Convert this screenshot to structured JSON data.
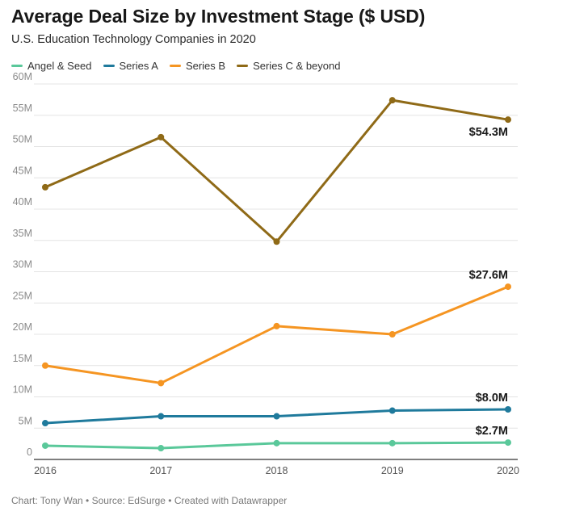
{
  "chart_data": {
    "type": "line",
    "title": "Average Deal Size by Investment Stage ($ USD)",
    "subtitle": "U.S. Education Technology Companies in 2020",
    "x": [
      "2016",
      "2017",
      "2018",
      "2019",
      "2020"
    ],
    "ylim": [
      0,
      60
    ],
    "yticks": [
      0,
      5,
      10,
      15,
      20,
      25,
      30,
      35,
      40,
      45,
      50,
      55,
      60
    ],
    "ytick_labels": [
      "0",
      "5M",
      "10M",
      "15M",
      "20M",
      "25M",
      "30M",
      "35M",
      "40M",
      "45M",
      "50M",
      "55M",
      "60M"
    ],
    "grid": true,
    "legend_position": "top-left",
    "series": [
      {
        "name": "Angel & Seed",
        "color": "#5ac89a",
        "values": [
          2.2,
          1.8,
          2.6,
          2.6,
          2.7
        ],
        "end_label": "$2.7M"
      },
      {
        "name": "Series A",
        "color": "#1f7a9c",
        "values": [
          5.8,
          6.9,
          6.9,
          7.8,
          8.0
        ],
        "end_label": "$8.0M"
      },
      {
        "name": "Series B",
        "color": "#f59522",
        "values": [
          15.0,
          12.2,
          21.3,
          20.0,
          27.6
        ],
        "end_label": "$27.6M"
      },
      {
        "name": "Series C & beyond",
        "color": "#8f6a17",
        "values": [
          43.5,
          51.5,
          34.8,
          57.4,
          54.3
        ],
        "end_label": "$54.3M"
      }
    ]
  },
  "footer": {
    "text": "Chart: Tony Wan • Source: EdSurge • Created with Datawrapper"
  }
}
